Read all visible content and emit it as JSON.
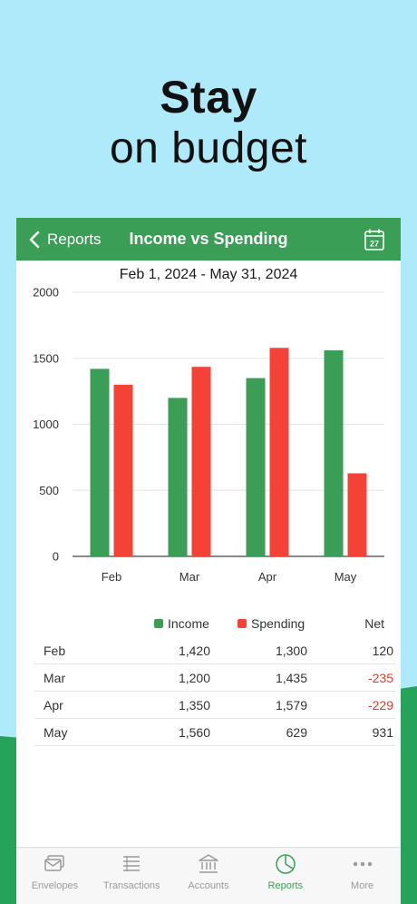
{
  "headline": {
    "bold": "Stay",
    "light": "on budget"
  },
  "nav": {
    "back_label": "Reports",
    "title": "Income vs Spending",
    "calendar_day": "27"
  },
  "date_range": "Feb 1, 2024 - May 31, 2024",
  "colors": {
    "income": "#3a9e57",
    "spending": "#f44336",
    "sky": "#aeeaf9",
    "brand_green": "#3a9e57"
  },
  "chart_data": {
    "type": "bar",
    "categories": [
      "Feb",
      "Mar",
      "Apr",
      "May"
    ],
    "series": [
      {
        "name": "Income",
        "values": [
          1420,
          1200,
          1350,
          1560
        ]
      },
      {
        "name": "Spending",
        "values": [
          1300,
          1435,
          1579,
          629
        ]
      }
    ],
    "ylim": [
      0,
      2000
    ],
    "yticks": [
      "2000",
      "1500",
      "1000",
      "500",
      "0"
    ],
    "grid": true
  },
  "table": {
    "headers": {
      "income": "Income",
      "spending": "Spending",
      "net": "Net"
    },
    "rows": [
      {
        "month": "Feb",
        "income": "1,420",
        "spending": "1,300",
        "net": "120",
        "negative": false
      },
      {
        "month": "Mar",
        "income": "1,200",
        "spending": "1,435",
        "net": "-235",
        "negative": true
      },
      {
        "month": "Apr",
        "income": "1,350",
        "spending": "1,579",
        "net": "-229",
        "negative": true
      },
      {
        "month": "May",
        "income": "1,560",
        "spending": "629",
        "net": "931",
        "negative": false
      }
    ]
  },
  "tabs": [
    {
      "label": "Envelopes",
      "icon": "envelopes-icon",
      "active": false
    },
    {
      "label": "Transactions",
      "icon": "transactions-icon",
      "active": false
    },
    {
      "label": "Accounts",
      "icon": "accounts-icon",
      "active": false
    },
    {
      "label": "Reports",
      "icon": "reports-icon",
      "active": true
    },
    {
      "label": "More",
      "icon": "more-icon",
      "active": false
    }
  ]
}
